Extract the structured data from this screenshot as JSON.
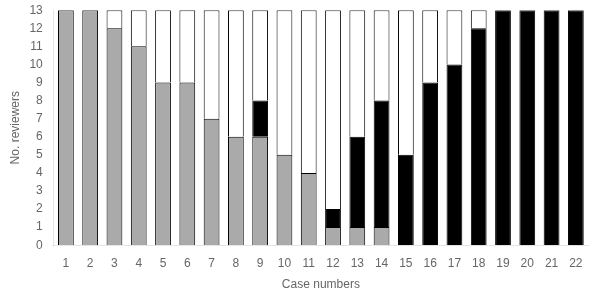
{
  "chart_data": {
    "type": "bar",
    "stacked": true,
    "categories": [
      "1",
      "2",
      "3",
      "4",
      "5",
      "6",
      "7",
      "8",
      "9",
      "10",
      "11",
      "12",
      "13",
      "14",
      "15",
      "16",
      "17",
      "18",
      "19",
      "20",
      "21",
      "22"
    ],
    "series": [
      {
        "color": "#aaaaaa",
        "values": [
          13,
          13,
          12,
          11,
          9,
          9,
          7,
          6,
          6,
          5,
          4,
          1,
          1,
          1,
          0,
          0,
          0,
          0,
          0,
          0,
          0,
          0
        ]
      },
      {
        "color": "#000000",
        "values": [
          0,
          0,
          0,
          0,
          0,
          0,
          0,
          0,
          2,
          0,
          0,
          1,
          5,
          7,
          5,
          9,
          10,
          12,
          13,
          13,
          13,
          13
        ]
      },
      {
        "color": "#ffffff",
        "values": [
          0,
          0,
          1,
          2,
          4,
          4,
          6,
          7,
          5,
          8,
          9,
          11,
          7,
          5,
          8,
          4,
          3,
          1,
          0,
          0,
          0,
          0
        ]
      }
    ],
    "xlabel": "Case numbers",
    "ylabel": "No. reviewers",
    "ylim": [
      0,
      13
    ],
    "yticks": [
      0,
      1,
      2,
      3,
      4,
      5,
      6,
      7,
      8,
      9,
      10,
      11,
      12,
      13
    ],
    "grid": false
  }
}
